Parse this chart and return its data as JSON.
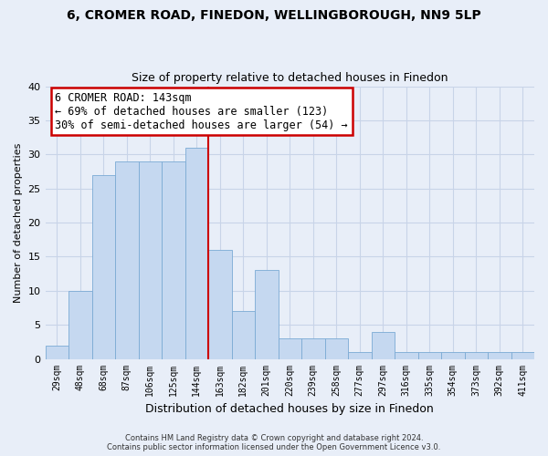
{
  "title1": "6, CROMER ROAD, FINEDON, WELLINGBOROUGH, NN9 5LP",
  "title2": "Size of property relative to detached houses in Finedon",
  "xlabel": "Distribution of detached houses by size in Finedon",
  "ylabel": "Number of detached properties",
  "footer1": "Contains HM Land Registry data © Crown copyright and database right 2024.",
  "footer2": "Contains public sector information licensed under the Open Government Licence v3.0.",
  "categories": [
    "29sqm",
    "48sqm",
    "68sqm",
    "87sqm",
    "106sqm",
    "125sqm",
    "144sqm",
    "163sqm",
    "182sqm",
    "201sqm",
    "220sqm",
    "239sqm",
    "258sqm",
    "277sqm",
    "297sqm",
    "316sqm",
    "335sqm",
    "354sqm",
    "373sqm",
    "392sqm",
    "411sqm"
  ],
  "values": [
    2,
    10,
    27,
    29,
    29,
    29,
    31,
    16,
    7,
    13,
    3,
    3,
    3,
    1,
    4,
    1,
    1,
    1,
    1,
    1,
    1
  ],
  "bar_color": "#c5d8f0",
  "bar_edge_color": "#7baad4",
  "annotation_box_text": "6 CROMER ROAD: 143sqm\n← 69% of detached houses are smaller (123)\n30% of semi-detached houses are larger (54) →",
  "annotation_box_color": "white",
  "annotation_box_edge_color": "#cc0000",
  "annotation_line_color": "#cc0000",
  "red_line_x": 6.5,
  "ylim": [
    0,
    40
  ],
  "yticks": [
    0,
    5,
    10,
    15,
    20,
    25,
    30,
    35,
    40
  ],
  "background_color": "#e8eef8",
  "grid_color": "#c8d4e8",
  "title1_fontsize": 10,
  "title2_fontsize": 9,
  "ylabel_fontsize": 8,
  "xlabel_fontsize": 9
}
